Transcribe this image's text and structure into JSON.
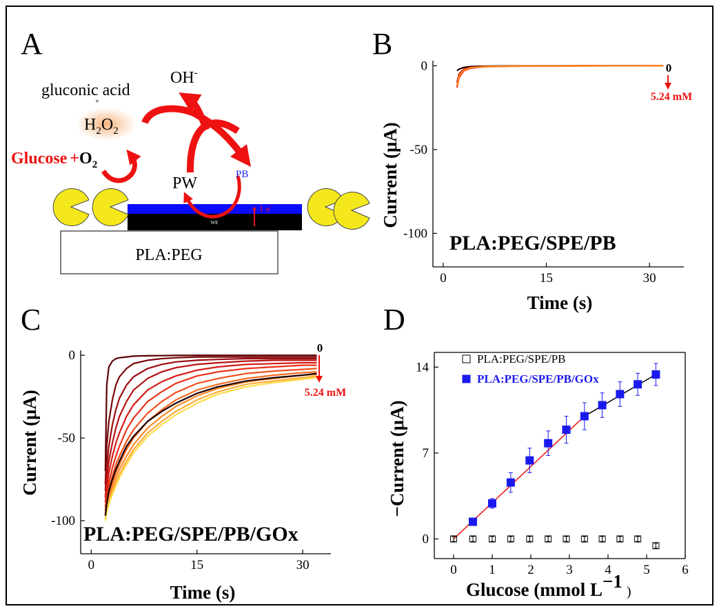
{
  "panels": {
    "a": {
      "letter": "A",
      "gluconic": "gluconic acid",
      "plus_small": "+",
      "oh": "OH",
      "oh_sup": "-",
      "h2o2": {
        "h": "H",
        "sub1": "2",
        "o": "O",
        "sub2": "2"
      },
      "glucose": "Glucose",
      "plus": "+",
      "o2": {
        "o": "O",
        "sub": "2"
      },
      "pw": "PW",
      "pb": "PB",
      "we": "WE",
      "electron": "1 e",
      "electron_sup": "-",
      "substrate": "PLA:PEG"
    },
    "b": {
      "letter": "B"
    },
    "c": {
      "letter": "C"
    },
    "d": {
      "letter": "D"
    }
  },
  "colors": {
    "red": "#ee1111",
    "blue": "#1a1aee",
    "pb_layer": "#0a0aff",
    "enzyme": "#f4e81c",
    "h2o2_glow": "#f7b27a"
  },
  "chart_data": [
    {
      "panel": "B",
      "type": "line",
      "xlabel": "Time (s)",
      "ylabel": "Current  (μA)",
      "xlim": [
        -1.5,
        35
      ],
      "ylim": [
        -120,
        3
      ],
      "xticks": [
        0,
        15,
        30
      ],
      "yticks": [
        0,
        -50,
        -100
      ],
      "annotation": "PLA:PEG/SPE/PB",
      "arrow_top_label": "0",
      "arrow_bottom_label": "5.24 mM",
      "series": [
        {
          "color": "#2a0000",
          "x": [
            2,
            2.3,
            3,
            4,
            6,
            10,
            20,
            32
          ],
          "y": [
            -3.0,
            -2.0,
            -1.0,
            -0.5,
            -0.2,
            -0.1,
            0,
            0
          ]
        },
        {
          "color": "#b8000a",
          "x": [
            2,
            2.3,
            3,
            4,
            6,
            10,
            20,
            32
          ],
          "y": [
            -10.0,
            -5.0,
            -2.0,
            -1.0,
            -0.5,
            -0.2,
            -0.1,
            0
          ]
        },
        {
          "color": "#ff2020",
          "x": [
            2,
            2.3,
            3,
            4,
            6,
            10,
            20,
            32
          ],
          "y": [
            -13.0,
            -7.0,
            -3.0,
            -1.5,
            -0.6,
            -0.3,
            -0.1,
            0
          ]
        },
        {
          "color": "#ff8a1a",
          "x": [
            2,
            2.3,
            3,
            4,
            6,
            10,
            20,
            32
          ],
          "y": [
            -12.0,
            -6.0,
            -2.5,
            -1.2,
            -0.5,
            -0.2,
            -0.1,
            0
          ]
        }
      ]
    },
    {
      "panel": "C",
      "type": "line",
      "xlabel": "Time (s)",
      "ylabel": "Current  (μA)",
      "xlim": [
        -1.5,
        34
      ],
      "ylim": [
        -120,
        3
      ],
      "xticks": [
        0,
        15,
        30
      ],
      "yticks": [
        0,
        -50,
        -100
      ],
      "annotation": "PLA:PEG/SPE/PB/GOx",
      "arrow_top_label": "0",
      "arrow_bottom_label": "5.24 mM",
      "series": [
        {
          "color": "#5a0000",
          "x": [
            2,
            2.2,
            2.5,
            3,
            3.5,
            4,
            5,
            6,
            8,
            10,
            12,
            15,
            18,
            22,
            26,
            30,
            32
          ],
          "y": [
            -70,
            -18,
            -7,
            -3.5,
            -2,
            -1.5,
            -1,
            -0.5,
            -0.3,
            -0.2,
            -0.1,
            0,
            0,
            0,
            0,
            0,
            0
          ]
        },
        {
          "color": "#7a0508",
          "x": [
            2,
            2.2,
            2.5,
            3,
            3.5,
            4,
            5,
            6,
            8,
            10,
            12,
            15,
            18,
            22,
            26,
            30,
            32
          ],
          "y": [
            -78,
            -55,
            -40,
            -27,
            -18,
            -13,
            -8,
            -5,
            -3,
            -2,
            -1.5,
            -1,
            -1,
            -1,
            -1,
            -1,
            -1
          ]
        },
        {
          "color": "#9a0c0f",
          "x": [
            2,
            2.2,
            2.5,
            3,
            3.5,
            4,
            5,
            6,
            8,
            10,
            12,
            15,
            18,
            22,
            26,
            30,
            32
          ],
          "y": [
            -82,
            -68,
            -55,
            -42,
            -33,
            -26,
            -18,
            -13,
            -8,
            -5.5,
            -4,
            -3,
            -2.5,
            -2,
            -2,
            -2,
            -2
          ]
        },
        {
          "color": "#b71212",
          "x": [
            2,
            2.2,
            2.5,
            3,
            3.5,
            4,
            5,
            6,
            8,
            10,
            12,
            15,
            18,
            22,
            26,
            30,
            32
          ],
          "y": [
            -86,
            -75,
            -64,
            -53,
            -44,
            -37,
            -28,
            -21,
            -14,
            -10,
            -7.5,
            -5.5,
            -4.5,
            -3.5,
            -3,
            -3,
            -3
          ]
        },
        {
          "color": "#d51a15",
          "x": [
            2,
            2.2,
            2.5,
            3,
            3.5,
            4,
            5,
            6,
            8,
            10,
            12,
            15,
            18,
            22,
            26,
            30,
            32
          ],
          "y": [
            -89,
            -80,
            -71,
            -61,
            -53,
            -47,
            -37,
            -30,
            -21,
            -16,
            -12.5,
            -9,
            -7,
            -5.5,
            -5,
            -4.5,
            -4.5
          ]
        },
        {
          "color": "#ea3019",
          "x": [
            2,
            2.2,
            2.5,
            3,
            3.5,
            4,
            5,
            6,
            8,
            10,
            12,
            15,
            18,
            22,
            26,
            30,
            32
          ],
          "y": [
            -92,
            -85,
            -77,
            -68,
            -61,
            -55,
            -45,
            -38,
            -28,
            -22,
            -17,
            -12.5,
            -10,
            -8,
            -7,
            -6,
            -6
          ]
        },
        {
          "color": "#f24e1c",
          "x": [
            2,
            2.2,
            2.5,
            3,
            3.5,
            4,
            5,
            6,
            8,
            10,
            12,
            15,
            18,
            22,
            26,
            30,
            32
          ],
          "y": [
            -94,
            -88,
            -81,
            -73,
            -66,
            -61,
            -52,
            -45,
            -35,
            -28,
            -22.5,
            -17,
            -14,
            -11,
            -9.5,
            -8.5,
            -8
          ]
        },
        {
          "color": "#f76a21",
          "x": [
            2,
            2.2,
            2.5,
            3,
            3.5,
            4,
            5,
            6,
            8,
            10,
            12,
            15,
            18,
            22,
            26,
            30,
            32
          ],
          "y": [
            -96,
            -90,
            -84,
            -77,
            -71,
            -66,
            -57,
            -50,
            -40,
            -33,
            -27,
            -21,
            -17.5,
            -14,
            -12,
            -10.5,
            -10
          ]
        },
        {
          "color": "#fb8a28",
          "x": [
            2,
            2.2,
            2.5,
            3,
            3.5,
            4,
            5,
            6,
            8,
            10,
            12,
            15,
            18,
            22,
            26,
            30,
            32
          ],
          "y": [
            -97,
            -92,
            -86,
            -80,
            -74,
            -69,
            -61,
            -54,
            -44,
            -37,
            -31,
            -24.5,
            -20,
            -16,
            -14,
            -12,
            -11.5
          ]
        },
        {
          "color": "#feac36",
          "x": [
            2,
            2.2,
            2.5,
            3,
            3.5,
            4,
            5,
            6,
            8,
            10,
            12,
            15,
            18,
            22,
            26,
            30,
            32
          ],
          "y": [
            -99,
            -94,
            -88,
            -82,
            -77,
            -72,
            -64,
            -57,
            -47,
            -40,
            -34,
            -27,
            -22,
            -17.5,
            -15.5,
            -13.5,
            -12.5
          ]
        },
        {
          "color": "#ffdb4a",
          "x": [
            2,
            2.2,
            2.5,
            3,
            3.5,
            4,
            5,
            6,
            8,
            10,
            12,
            15,
            18,
            22,
            26,
            30,
            32
          ],
          "y": [
            -100,
            -95,
            -90,
            -84,
            -79,
            -74,
            -66,
            -59,
            -49,
            -42,
            -36,
            -29,
            -23.5,
            -19,
            -16.5,
            -14.5,
            -13.5
          ]
        },
        {
          "color": "#1a0000",
          "x": [
            2,
            2.2,
            2.5,
            3,
            3.5,
            4,
            5,
            6,
            8,
            10,
            12,
            15,
            18,
            22,
            26,
            30,
            32
          ],
          "y": [
            -97,
            -90,
            -82,
            -75,
            -69,
            -64,
            -55,
            -49,
            -40,
            -34,
            -29,
            -23,
            -19,
            -15.5,
            -13.5,
            -12,
            -11
          ]
        }
      ]
    },
    {
      "panel": "D",
      "type": "scatter",
      "xlabel": "Glucose (mmol L",
      "xlabel_sup": "−1",
      "xlabel_close": ")",
      "ylabel": "−Current  (μA)",
      "xlim": [
        -0.5,
        6
      ],
      "ylim": [
        -1.6,
        15.2
      ],
      "xticks": [
        0,
        1,
        2,
        3,
        4,
        5,
        6
      ],
      "yticks": [
        0,
        7,
        14
      ],
      "legend_position": "top-left",
      "series": [
        {
          "name": "PLA:PEG/SPE/PB",
          "marker": "open-square",
          "color": "#000000",
          "x": [
            0,
            0.5,
            1.0,
            1.48,
            1.97,
            2.45,
            2.92,
            3.39,
            3.85,
            4.31,
            4.77,
            5.24
          ],
          "y": [
            0,
            0,
            0,
            0,
            0,
            0,
            0,
            0,
            0,
            0,
            0,
            -0.55
          ],
          "err": [
            0.2,
            0.2,
            0.2,
            0.2,
            0.2,
            0.2,
            0.2,
            0.2,
            0.2,
            0.2,
            0.2,
            0.2
          ]
        },
        {
          "name": "PLA:PEG/SPE/PB/GOx",
          "marker": "filled-square",
          "color": "#1a1aee",
          "x": [
            0.5,
            1.0,
            1.48,
            1.97,
            2.45,
            2.92,
            3.39,
            3.85,
            4.31,
            4.77,
            5.24
          ],
          "y": [
            1.4,
            2.9,
            4.6,
            6.4,
            7.8,
            8.9,
            10.0,
            10.9,
            11.8,
            12.6,
            13.4
          ],
          "err": [
            0.2,
            0.4,
            0.8,
            1.0,
            1.0,
            1.1,
            1.1,
            1.0,
            1.0,
            0.9,
            0.9
          ]
        }
      ],
      "fit_lines": [
        {
          "color": "#ee1111",
          "x": [
            0,
            3.39
          ],
          "y": [
            0,
            10.0
          ]
        },
        {
          "color": "#000000",
          "x": [
            3.39,
            5.24
          ],
          "y": [
            10.0,
            13.4
          ]
        }
      ]
    }
  ]
}
